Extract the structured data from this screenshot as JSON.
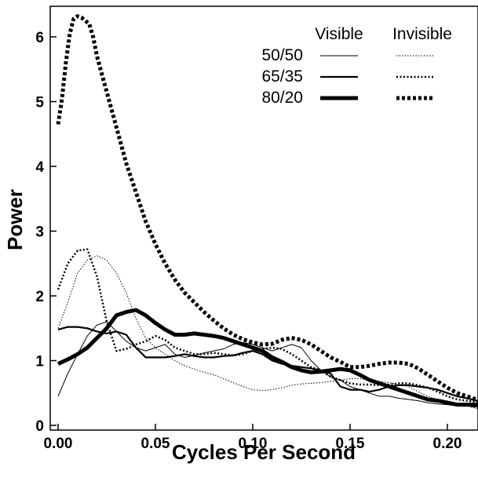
{
  "chart_data": {
    "type": "line",
    "title": "",
    "xlabel": "Cycles Per Second",
    "ylabel": "Power",
    "xlim": [
      0,
      0.22
    ],
    "ylim": [
      0,
      6.5
    ],
    "x_ticks": [
      "0.00",
      "0.05",
      "0.10",
      "0.15",
      "0.20"
    ],
    "y_ticks": [
      "0",
      "1",
      "2",
      "3",
      "4",
      "5",
      "6"
    ],
    "grid": false,
    "legend": {
      "placement": "top-right",
      "column_headers": [
        "Visible",
        "Invisible"
      ],
      "row_labels": [
        "50/50",
        "65/35",
        "80/20"
      ]
    },
    "series": [
      {
        "condition": "50/50",
        "visibility": "Visible",
        "style": "solid",
        "weight": "thin",
        "x": [
          0,
          0.005,
          0.01,
          0.015,
          0.02,
          0.025,
          0.03,
          0.035,
          0.04,
          0.045,
          0.05,
          0.055,
          0.06,
          0.065,
          0.07,
          0.075,
          0.08,
          0.085,
          0.09,
          0.095,
          0.1,
          0.105,
          0.11,
          0.115,
          0.12,
          0.125,
          0.13,
          0.135,
          0.14,
          0.145,
          0.15,
          0.155,
          0.16,
          0.165,
          0.17,
          0.175,
          0.18,
          0.185,
          0.19,
          0.195,
          0.2,
          0.205,
          0.21,
          0.215,
          0.22
        ],
        "y": [
          0.45,
          0.8,
          1.1,
          1.38,
          1.55,
          1.6,
          1.45,
          1.3,
          1.2,
          1.15,
          1.2,
          1.25,
          1.1,
          1.05,
          1.08,
          1.12,
          1.15,
          1.18,
          1.25,
          1.28,
          1.25,
          1.2,
          1.15,
          1.2,
          1.25,
          1.2,
          1.0,
          0.85,
          0.75,
          0.7,
          0.6,
          0.55,
          0.5,
          0.45,
          0.45,
          0.42,
          0.4,
          0.38,
          0.35,
          0.33,
          0.32,
          0.3,
          0.3,
          0.28,
          0.27
        ]
      },
      {
        "condition": "65/35",
        "visibility": "Visible",
        "style": "solid",
        "weight": "medium",
        "x": [
          0,
          0.005,
          0.01,
          0.015,
          0.02,
          0.025,
          0.03,
          0.035,
          0.04,
          0.045,
          0.05,
          0.055,
          0.06,
          0.065,
          0.07,
          0.075,
          0.08,
          0.085,
          0.09,
          0.095,
          0.1,
          0.105,
          0.11,
          0.115,
          0.12,
          0.125,
          0.13,
          0.135,
          0.14,
          0.145,
          0.15,
          0.155,
          0.16,
          0.165,
          0.17,
          0.175,
          0.18,
          0.185,
          0.19,
          0.195,
          0.2,
          0.205,
          0.21,
          0.215,
          0.22
        ],
        "y": [
          1.48,
          1.52,
          1.52,
          1.5,
          1.45,
          1.42,
          1.45,
          1.4,
          1.2,
          1.05,
          1.05,
          1.05,
          1.07,
          1.1,
          1.07,
          1.05,
          1.05,
          1.07,
          1.08,
          1.12,
          1.15,
          1.1,
          1.0,
          0.95,
          0.92,
          0.9,
          0.88,
          0.85,
          0.8,
          0.6,
          0.55,
          0.55,
          0.52,
          0.55,
          0.6,
          0.62,
          0.62,
          0.6,
          0.58,
          0.55,
          0.5,
          0.45,
          0.42,
          0.38,
          0.34
        ]
      },
      {
        "condition": "80/20",
        "visibility": "Visible",
        "style": "solid",
        "weight": "thick",
        "x": [
          0,
          0.005,
          0.01,
          0.015,
          0.02,
          0.025,
          0.03,
          0.035,
          0.04,
          0.045,
          0.05,
          0.055,
          0.06,
          0.065,
          0.07,
          0.075,
          0.08,
          0.085,
          0.09,
          0.095,
          0.1,
          0.105,
          0.11,
          0.115,
          0.12,
          0.125,
          0.13,
          0.135,
          0.14,
          0.145,
          0.15,
          0.155,
          0.16,
          0.165,
          0.17,
          0.175,
          0.18,
          0.185,
          0.19,
          0.195,
          0.2,
          0.205,
          0.21,
          0.215,
          0.22
        ],
        "y": [
          0.95,
          1.02,
          1.1,
          1.2,
          1.35,
          1.5,
          1.7,
          1.75,
          1.78,
          1.7,
          1.58,
          1.48,
          1.4,
          1.4,
          1.42,
          1.4,
          1.38,
          1.35,
          1.3,
          1.25,
          1.2,
          1.15,
          1.05,
          0.98,
          0.9,
          0.85,
          0.82,
          0.83,
          0.85,
          0.87,
          0.85,
          0.78,
          0.7,
          0.65,
          0.6,
          0.55,
          0.5,
          0.45,
          0.4,
          0.38,
          0.35,
          0.32,
          0.32,
          0.32,
          0.3
        ]
      },
      {
        "condition": "50/50",
        "visibility": "Invisible",
        "style": "dotted",
        "weight": "thin",
        "x": [
          0,
          0.005,
          0.01,
          0.015,
          0.02,
          0.025,
          0.03,
          0.035,
          0.04,
          0.045,
          0.05,
          0.055,
          0.06,
          0.065,
          0.07,
          0.075,
          0.08,
          0.085,
          0.09,
          0.095,
          0.1,
          0.105,
          0.11,
          0.115,
          0.12,
          0.125,
          0.13,
          0.135,
          0.14,
          0.145,
          0.15,
          0.155,
          0.16,
          0.165,
          0.17,
          0.175,
          0.18,
          0.185,
          0.19,
          0.195,
          0.2,
          0.205,
          0.21,
          0.215,
          0.22
        ],
        "y": [
          1.5,
          1.9,
          2.35,
          2.55,
          2.62,
          2.55,
          2.35,
          2.05,
          1.65,
          1.35,
          1.2,
          1.1,
          1.0,
          0.92,
          0.87,
          0.82,
          0.78,
          0.72,
          0.66,
          0.6,
          0.55,
          0.54,
          0.55,
          0.58,
          0.62,
          0.64,
          0.65,
          0.66,
          0.68,
          0.7,
          0.72,
          0.72,
          0.7,
          0.68,
          0.66,
          0.64,
          0.6,
          0.52,
          0.45,
          0.4,
          0.36,
          0.33,
          0.3,
          0.26,
          0.23
        ]
      },
      {
        "condition": "65/35",
        "visibility": "Invisible",
        "style": "dotted",
        "weight": "medium",
        "x": [
          0,
          0.005,
          0.01,
          0.015,
          0.02,
          0.025,
          0.03,
          0.035,
          0.04,
          0.045,
          0.05,
          0.055,
          0.06,
          0.065,
          0.07,
          0.075,
          0.08,
          0.085,
          0.09,
          0.095,
          0.1,
          0.105,
          0.11,
          0.115,
          0.12,
          0.125,
          0.13,
          0.135,
          0.14,
          0.145,
          0.15,
          0.155,
          0.16,
          0.165,
          0.17,
          0.175,
          0.18,
          0.185,
          0.19,
          0.195,
          0.2,
          0.205,
          0.21,
          0.215,
          0.22
        ],
        "y": [
          2.1,
          2.5,
          2.7,
          2.72,
          2.3,
          1.6,
          1.15,
          1.18,
          1.25,
          1.3,
          1.38,
          1.32,
          1.2,
          1.15,
          1.1,
          1.1,
          1.12,
          1.1,
          1.08,
          1.1,
          1.15,
          1.18,
          1.2,
          1.18,
          1.1,
          1.0,
          0.9,
          0.85,
          0.75,
          0.7,
          0.65,
          0.63,
          0.63,
          0.62,
          0.63,
          0.65,
          0.65,
          0.62,
          0.58,
          0.52,
          0.45,
          0.4,
          0.38,
          0.36,
          0.35
        ]
      },
      {
        "condition": "80/20",
        "visibility": "Invisible",
        "style": "dotted",
        "weight": "thick",
        "x": [
          0,
          0.002,
          0.004,
          0.006,
          0.008,
          0.01,
          0.012,
          0.014,
          0.016,
          0.018,
          0.02,
          0.025,
          0.03,
          0.035,
          0.04,
          0.045,
          0.05,
          0.055,
          0.06,
          0.065,
          0.07,
          0.075,
          0.08,
          0.085,
          0.09,
          0.095,
          0.1,
          0.105,
          0.11,
          0.115,
          0.12,
          0.125,
          0.13,
          0.135,
          0.14,
          0.145,
          0.15,
          0.155,
          0.16,
          0.165,
          0.17,
          0.175,
          0.18,
          0.185,
          0.19,
          0.195,
          0.2,
          0.205,
          0.21,
          0.215,
          0.22
        ],
        "y": [
          4.65,
          5.05,
          5.6,
          6.05,
          6.28,
          6.32,
          6.3,
          6.25,
          6.2,
          6.0,
          5.7,
          5.15,
          4.6,
          4.05,
          3.6,
          3.15,
          2.8,
          2.5,
          2.25,
          2.05,
          1.9,
          1.75,
          1.62,
          1.5,
          1.4,
          1.33,
          1.28,
          1.25,
          1.26,
          1.32,
          1.35,
          1.32,
          1.25,
          1.15,
          1.05,
          0.98,
          0.9,
          0.9,
          0.92,
          0.95,
          0.97,
          0.97,
          0.95,
          0.88,
          0.78,
          0.68,
          0.58,
          0.5,
          0.45,
          0.4,
          0.37
        ]
      }
    ]
  }
}
